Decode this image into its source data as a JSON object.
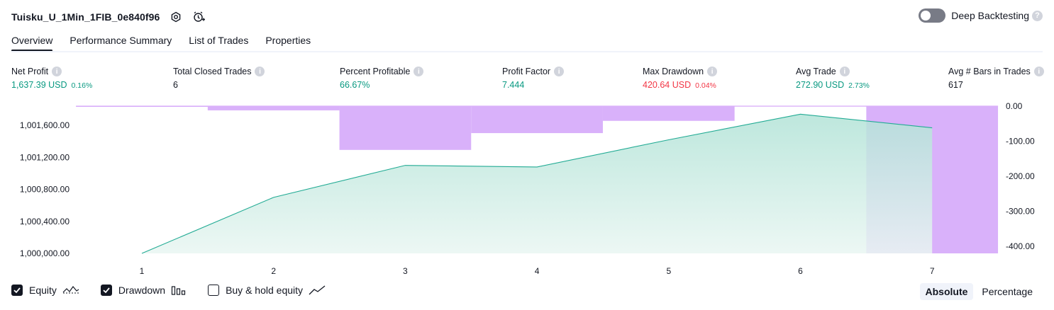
{
  "header": {
    "title": "Tuisku_U_1Min_1FIB_0e840f96",
    "deep_backtesting_label": "Deep Backtesting",
    "help_glyph": "?"
  },
  "tabs": [
    {
      "label": "Overview",
      "active": true
    },
    {
      "label": "Performance Summary",
      "active": false
    },
    {
      "label": "List of Trades",
      "active": false
    },
    {
      "label": "Properties",
      "active": false
    }
  ],
  "metrics": {
    "net_profit": {
      "label": "Net Profit",
      "value": "1,637.39 USD",
      "pct": "0.16%"
    },
    "total_closed_trades": {
      "label": "Total Closed Trades",
      "value": "6"
    },
    "percent_profitable": {
      "label": "Percent Profitable",
      "value": "66.67%"
    },
    "profit_factor": {
      "label": "Profit Factor",
      "value": "7.444"
    },
    "max_drawdown": {
      "label": "Max Drawdown",
      "value": "420.64 USD",
      "pct": "0.04%"
    },
    "avg_trade": {
      "label": "Avg Trade",
      "value": "272.90 USD",
      "pct": "2.73%"
    },
    "avg_bars": {
      "label": "Avg # Bars in Trades",
      "value": "617"
    }
  },
  "info_glyph": "i",
  "chart_data": {
    "type": "area",
    "x": [
      1,
      2,
      3,
      4,
      5,
      6,
      7
    ],
    "x_tick_labels": [
      "1",
      "2",
      "3",
      "4",
      "5",
      "6",
      "7"
    ],
    "equity": {
      "values": [
        1000000,
        1000700,
        1001100,
        1001080,
        1001420,
        1001740,
        1001570
      ],
      "ylim": [
        1000000,
        1001840
      ],
      "tick_values": [
        1000000,
        1000400,
        1000800,
        1001200,
        1001600
      ],
      "tick_labels": [
        "1,000,000.00",
        "1,000,400.00",
        "1,000,800.00",
        "1,001,200.00",
        "1,001,600.00"
      ]
    },
    "drawdown": {
      "bars": [
        {
          "x0": 0.5,
          "x1": 1.5,
          "value": -2
        },
        {
          "x0": 1.5,
          "x1": 2.5,
          "value": -12
        },
        {
          "x0": 2.5,
          "x1": 3.5,
          "value": -125
        },
        {
          "x0": 3.5,
          "x1": 4.5,
          "value": -77
        },
        {
          "x0": 4.5,
          "x1": 5.5,
          "value": -42
        },
        {
          "x0": 6.5,
          "x1": 7.5,
          "value": -420.64
        }
      ],
      "ylim": [
        -420.64,
        0
      ],
      "tick_values": [
        0,
        -100,
        -200,
        -300,
        -400
      ],
      "tick_labels": [
        "0.00",
        "-100.00",
        "-200.00",
        "-300.00",
        "-400.00"
      ]
    },
    "colors": {
      "equity_line": "#22ab94",
      "equity_fill_top": "#b2e3d7",
      "equity_fill_bottom": "#e9f6f2",
      "drawdown_fill": "#d9b1fa",
      "drawdown_line": "#ce93f7"
    }
  },
  "footer": {
    "equity_label": "Equity",
    "drawdown_label": "Drawdown",
    "buyhold_label": "Buy & hold equity",
    "equity_checked": true,
    "drawdown_checked": true,
    "buyhold_checked": false
  },
  "mode": {
    "absolute_label": "Absolute",
    "percentage_label": "Percentage",
    "active": "absolute"
  }
}
